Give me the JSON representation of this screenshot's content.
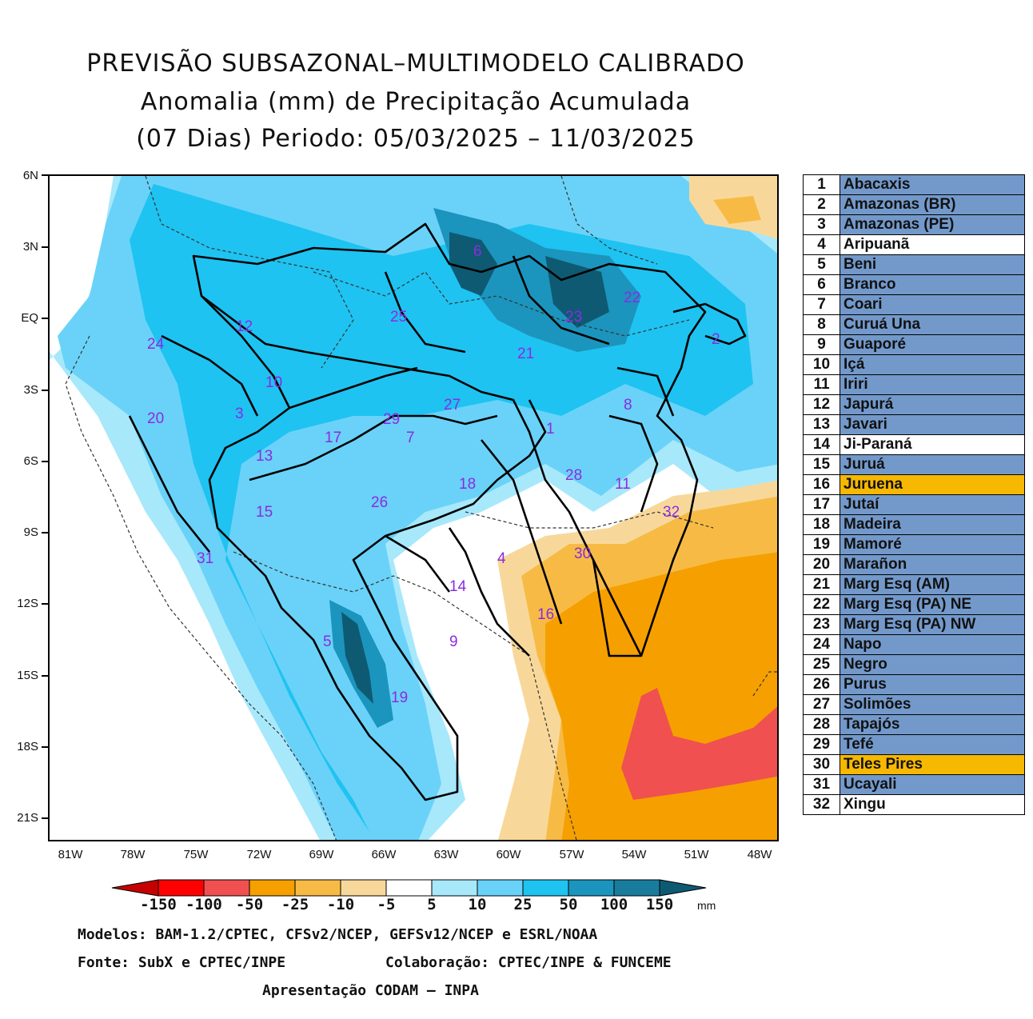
{
  "title": {
    "line1": "PREVISÃO SUBSAZONAL–MULTIMODELO CALIBRADO",
    "line2": "Anomalia (mm) de Precipitação Acumulada",
    "line3": "(07 Dias) Periodo: 05/03/2025 – 11/03/2025"
  },
  "axes": {
    "lat_labels": [
      "6N",
      "3N",
      "EQ",
      "3S",
      "6S",
      "9S",
      "12S",
      "15S",
      "18S",
      "21S"
    ],
    "lon_labels": [
      "81W",
      "78W",
      "75W",
      "72W",
      "69W",
      "66W",
      "63W",
      "60W",
      "57W",
      "54W",
      "51W",
      "48W"
    ],
    "lat_range": [
      -22,
      6
    ],
    "lon_range": [
      -82,
      -47.5
    ]
  },
  "basin_labels": [
    "6",
    "22",
    "25",
    "12",
    "23",
    "2",
    "24",
    "21",
    "10",
    "20",
    "3",
    "27",
    "8",
    "29",
    "17",
    "7",
    "1",
    "13",
    "28",
    "11",
    "18",
    "15",
    "26",
    "32",
    "31",
    "4",
    "30",
    "14",
    "16",
    "9",
    "5",
    "19"
  ],
  "legend": [
    {
      "num": "1",
      "name": "Abacaxis",
      "color": "blue"
    },
    {
      "num": "2",
      "name": "Amazonas (BR)",
      "color": "blue"
    },
    {
      "num": "3",
      "name": "Amazonas (PE)",
      "color": "blue"
    },
    {
      "num": "4",
      "name": "Aripuanã",
      "color": "white"
    },
    {
      "num": "5",
      "name": "Beni",
      "color": "blue"
    },
    {
      "num": "6",
      "name": "Branco",
      "color": "blue"
    },
    {
      "num": "7",
      "name": "Coari",
      "color": "blue"
    },
    {
      "num": "8",
      "name": "Curuá Una",
      "color": "blue"
    },
    {
      "num": "9",
      "name": "Guaporé",
      "color": "blue"
    },
    {
      "num": "10",
      "name": "Içá",
      "color": "blue"
    },
    {
      "num": "11",
      "name": "Iriri",
      "color": "blue"
    },
    {
      "num": "12",
      "name": "Japurá",
      "color": "blue"
    },
    {
      "num": "13",
      "name": "Javari",
      "color": "blue"
    },
    {
      "num": "14",
      "name": "Ji-Paraná",
      "color": "white"
    },
    {
      "num": "15",
      "name": "Juruá",
      "color": "blue"
    },
    {
      "num": "16",
      "name": "Juruena",
      "color": "orange"
    },
    {
      "num": "17",
      "name": "Jutaí",
      "color": "blue"
    },
    {
      "num": "18",
      "name": "Madeira",
      "color": "blue"
    },
    {
      "num": "19",
      "name": "Mamoré",
      "color": "blue"
    },
    {
      "num": "20",
      "name": "Marañon",
      "color": "blue"
    },
    {
      "num": "21",
      "name": "Marg Esq (AM)",
      "color": "blue"
    },
    {
      "num": "22",
      "name": "Marg Esq (PA) NE",
      "color": "blue"
    },
    {
      "num": "23",
      "name": "Marg Esq (PA) NW",
      "color": "blue"
    },
    {
      "num": "24",
      "name": "Napo",
      "color": "blue"
    },
    {
      "num": "25",
      "name": "Negro",
      "color": "blue"
    },
    {
      "num": "26",
      "name": "Purus",
      "color": "blue"
    },
    {
      "num": "27",
      "name": "Solimões",
      "color": "blue"
    },
    {
      "num": "28",
      "name": "Tapajós",
      "color": "blue"
    },
    {
      "num": "29",
      "name": "Tefé",
      "color": "blue"
    },
    {
      "num": "30",
      "name": "Teles Pires",
      "color": "orange"
    },
    {
      "num": "31",
      "name": "Ucayali",
      "color": "blue"
    },
    {
      "num": "32",
      "name": "Xingu",
      "color": "white"
    }
  ],
  "colorbar": {
    "labels": [
      "-150",
      "-100",
      "-50",
      "-25",
      "-10",
      "-5",
      "5",
      "10",
      "25",
      "50",
      "100",
      "150"
    ],
    "colors": [
      "#c60000",
      "#ff0000",
      "#f05050",
      "#f5a000",
      "#f7bb45",
      "#f8d89a",
      "#ffffff",
      "#a8e8fb",
      "#6ad2f8",
      "#1ec3f1",
      "#1b95bd",
      "#1a7c9d",
      "#0f5a73"
    ],
    "unit": "mm"
  },
  "footer": {
    "models": "Modelos: BAM-1.2/CPTEC, CFSv2/NCEP, GEFSv12/NCEP e ESRL/NOAA",
    "source": "Fonte: SubX e CPTEC/INPE",
    "collab": "Colaboração: CPTEC/INPE & FUNCEME",
    "presentation": "Apresentação CODAM – INPA"
  }
}
